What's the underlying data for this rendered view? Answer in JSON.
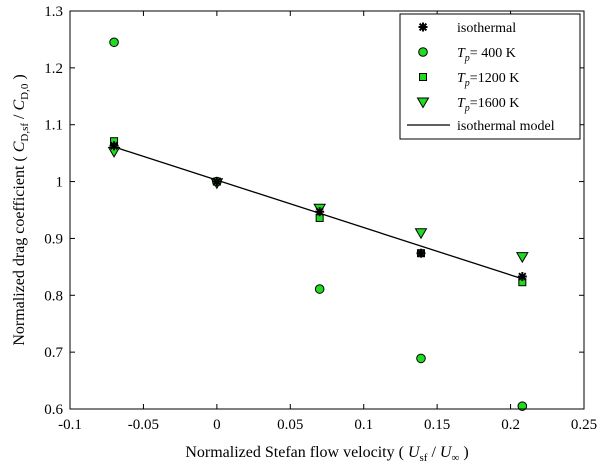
{
  "chart_data": {
    "type": "scatter",
    "title": "",
    "xlabel": {
      "prefix": "Normalized Stefan flow velocity ( ",
      "num": "U",
      "num_sub": "sf",
      "sep": " / ",
      "den": "U",
      "den_sub": "∞",
      "suffix": " )"
    },
    "ylabel": {
      "prefix": "Normalized drag coefficient ( ",
      "num": "C",
      "num_sub": "D,sf",
      "sep": " / ",
      "den": "C",
      "den_sub": "D,0",
      "suffix": " )"
    },
    "xlim": [
      -0.1,
      0.25
    ],
    "ylim": [
      0.6,
      1.3
    ],
    "xticks": [
      -0.1,
      -0.05,
      0,
      0.05,
      0.1,
      0.15,
      0.2,
      0.25
    ],
    "xtick_labels": [
      "-0.1",
      "-0.05",
      "0",
      "0.05",
      "0.1",
      "0.15",
      "0.2",
      "0.25"
    ],
    "yticks": [
      0.6,
      0.7,
      0.8,
      0.9,
      1.0,
      1.1,
      1.2,
      1.3
    ],
    "ytick_labels": [
      "0.6",
      "0.7",
      "0.8",
      "0.9",
      "1",
      "1.1",
      "1.2",
      "1.3"
    ],
    "grid": false,
    "legend_position": "top-right",
    "series": [
      {
        "name": "isothermal",
        "marker": "star",
        "color": "#000000",
        "x": [
          -0.07,
          0,
          0.07,
          0.139,
          0.208
        ],
        "y": [
          1.063,
          1.0,
          0.947,
          0.874,
          0.833
        ]
      },
      {
        "name_parts": {
          "sym": "T",
          "sub": "p",
          "rest": "= 400 K"
        },
        "marker": "circle",
        "color": "#1fdc1f",
        "x": [
          -0.07,
          0,
          0.07,
          0.139,
          0.208
        ],
        "y": [
          1.245,
          1.0,
          0.811,
          0.689,
          0.605
        ]
      },
      {
        "name_parts": {
          "sym": "T",
          "sub": "p",
          "rest": "=1200 K"
        },
        "marker": "square",
        "color": "#1fdc1f",
        "x": [
          -0.07,
          0,
          0.07,
          0.139,
          0.208
        ],
        "y": [
          1.071,
          1.0,
          0.936,
          0.874,
          0.823
        ]
      },
      {
        "name_parts": {
          "sym": "T",
          "sub": "p",
          "rest": "=1600 K"
        },
        "marker": "triangle-down",
        "color": "#1fdc1f",
        "x": [
          -0.07,
          0,
          0.07,
          0.139,
          0.208
        ],
        "y": [
          1.053,
          0.998,
          0.953,
          0.91,
          0.868
        ]
      }
    ],
    "line": {
      "name": "isothermal model",
      "color": "#000000",
      "x": [
        -0.07,
        0.208
      ],
      "y": [
        1.061,
        0.829
      ]
    }
  }
}
